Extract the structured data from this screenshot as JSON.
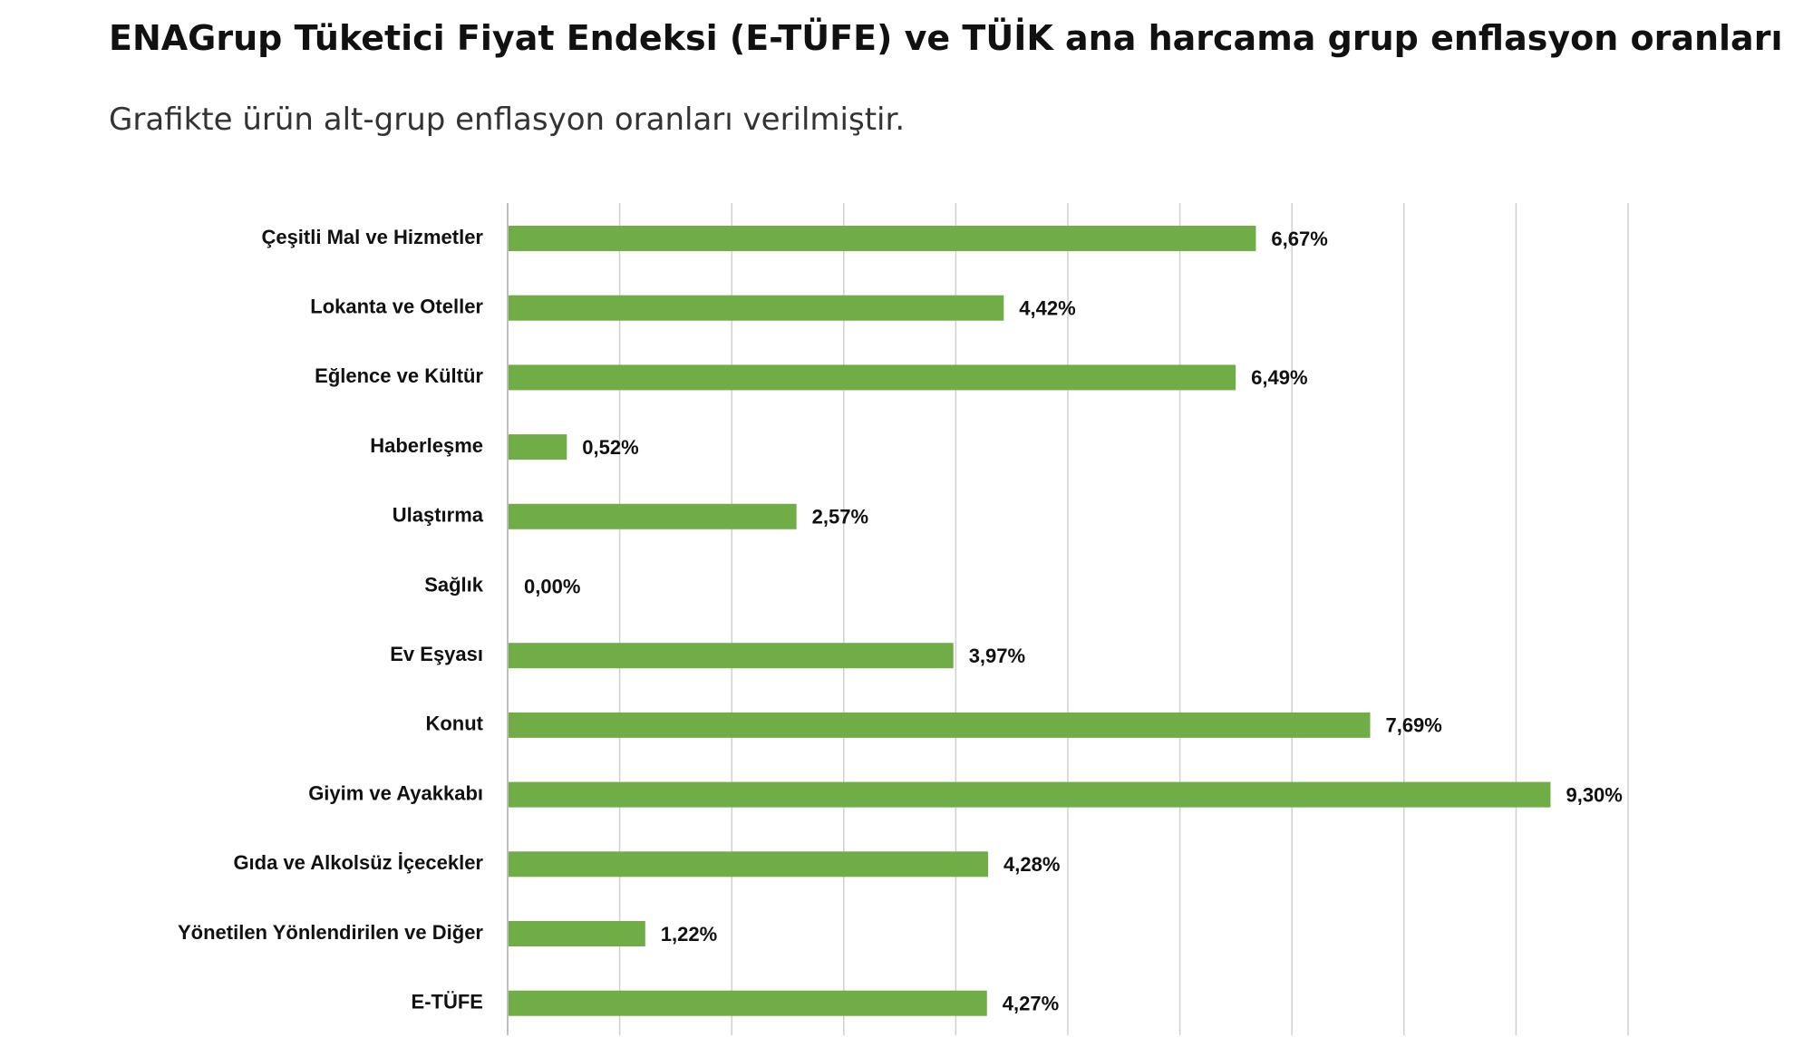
{
  "header": {
    "title": "ENAGrup Tüketici Fiyat Endeksi (E-TÜFE) ve TÜİK ana harcama grup enflasyon oranları",
    "subtitle": "Grafikte ürün alt-grup enflasyon oranları verilmiştir."
  },
  "chart_data": {
    "type": "bar",
    "orientation": "horizontal",
    "categories": [
      "Çeşitli Mal ve Hizmetler",
      "Lokanta ve Oteller",
      "Eğlence ve Kültür",
      "Haberleşme",
      "Ulaştırma",
      "Sağlık",
      "Ev Eşyası",
      "Konut",
      "Giyim ve Ayakkabı",
      "Gıda ve Alkolsüz İçecekler",
      "Yönetilen Yönlendirilen ve Diğer",
      "E-TÜFE"
    ],
    "values": [
      6.67,
      4.42,
      6.49,
      0.52,
      2.57,
      0.0,
      3.97,
      7.69,
      9.3,
      4.28,
      1.22,
      4.27
    ],
    "value_labels": [
      "6,67%",
      "4,42%",
      "6,49%",
      "0,52%",
      "2,57%",
      "0,00%",
      "3,97%",
      "7,69%",
      "9,30%",
      "4,28%",
      "1,22%",
      "4,27%"
    ],
    "xlim": [
      0,
      10
    ],
    "grid": true,
    "bar_color": "#70ad47",
    "grid_color": "#d0d0d0"
  }
}
